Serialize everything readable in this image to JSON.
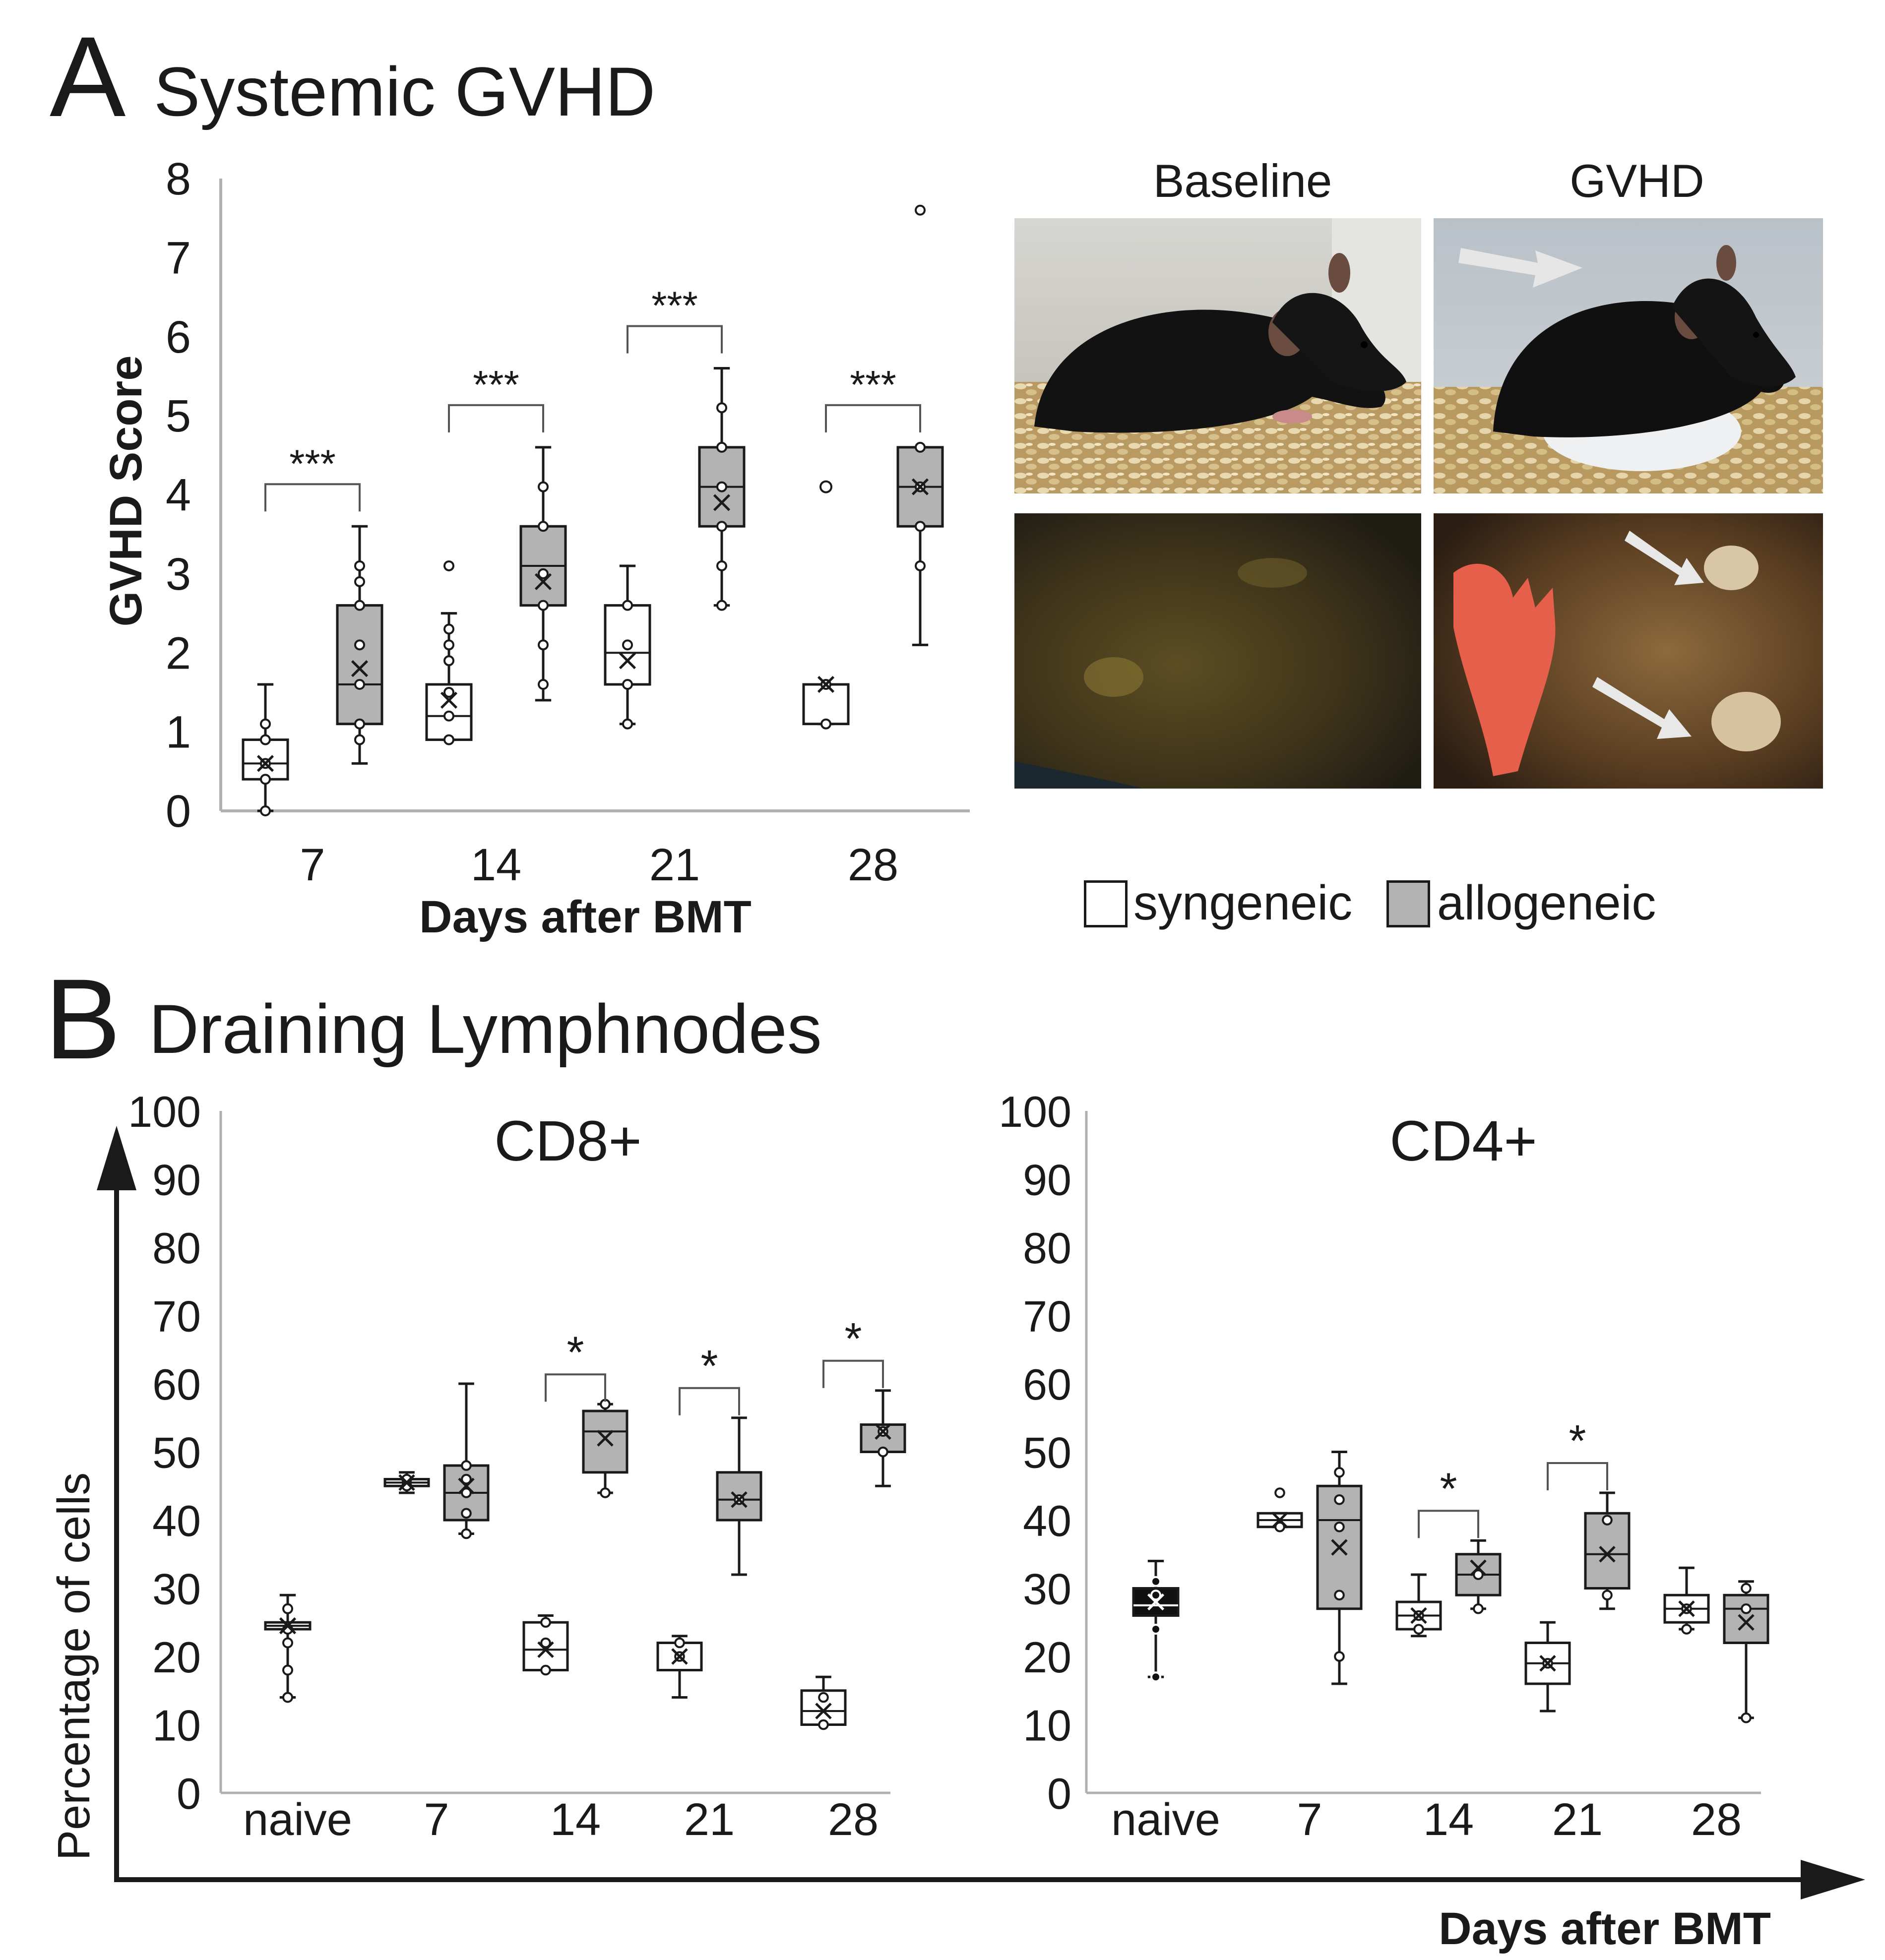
{
  "panel_a": {
    "letter": "A",
    "title": "Systemic GVHD",
    "photo_labels": {
      "baseline": "Baseline",
      "gvhd": "GVHD"
    }
  },
  "panel_b": {
    "letter": "B",
    "title": "Draining Lymphnodes",
    "shared_ylabel": "Percentage of cells",
    "shared_xlabel": "Days after BMT"
  },
  "legend": {
    "syngeneic": "syngeneic",
    "allogeneic": "allogeneic"
  },
  "colors": {
    "syngeneic_fill": "#ffffff",
    "allogeneic_fill": "#b3b3b3",
    "naive_cd4_fill": "#111111",
    "axis": "#b0b0b0",
    "ink": "#1a1a1a",
    "arrow": "#e8e8e8"
  },
  "chart_data": [
    {
      "id": "gvhd_score",
      "type": "box",
      "title": "",
      "xlabel": "Days after BMT",
      "ylabel": "GVHD Score",
      "ylim": [
        0,
        8
      ],
      "yticks": [
        "0",
        "1",
        "2",
        "3",
        "4",
        "5",
        "6",
        "7",
        "8"
      ],
      "categories": [
        "7",
        "14",
        "21",
        "28"
      ],
      "significance": [
        "***",
        "***",
        "***",
        "***"
      ],
      "series": [
        {
          "name": "syngeneic",
          "boxes": [
            {
              "min": 0,
              "q1": 0.4,
              "median": 0.6,
              "q3": 0.9,
              "max": 1.6,
              "mean": 0.6,
              "points": [
                0,
                0.4,
                0.6,
                0.9,
                1.1
              ]
            },
            {
              "min": 0.9,
              "q1": 0.9,
              "median": 1.2,
              "q3": 1.6,
              "max": 2.5,
              "mean": 1.4,
              "points": [
                0.9,
                1.2,
                1.5,
                1.9,
                2.1,
                2.3,
                3.1
              ]
            },
            {
              "min": 1.1,
              "q1": 1.6,
              "median": 2.0,
              "q3": 2.6,
              "max": 3.1,
              "mean": 1.9,
              "points": [
                1.1,
                1.6,
                2.1,
                2.6
              ]
            },
            {
              "min": 1.1,
              "q1": 1.1,
              "median": 1.6,
              "q3": 1.6,
              "max": 1.6,
              "mean": 1.6,
              "points": [
                1.1,
                1.6
              ]
            }
          ]
        },
        {
          "name": "allogeneic",
          "boxes": [
            {
              "min": 0.6,
              "q1": 1.1,
              "median": 1.6,
              "q3": 2.6,
              "max": 3.6,
              "mean": 1.8,
              "points": [
                0.9,
                1.1,
                1.6,
                2.1,
                2.6,
                2.9,
                3.1
              ]
            },
            {
              "min": 1.4,
              "q1": 2.6,
              "median": 3.1,
              "q3": 3.6,
              "max": 4.6,
              "mean": 2.9,
              "points": [
                1.6,
                2.1,
                2.6,
                3.0,
                3.6,
                4.1
              ]
            },
            {
              "min": 2.6,
              "q1": 3.6,
              "median": 4.1,
              "q3": 4.6,
              "max": 5.6,
              "mean": 3.9,
              "points": [
                2.6,
                3.1,
                3.6,
                4.1,
                4.6,
                5.1
              ]
            },
            {
              "min": 2.1,
              "q1": 3.6,
              "median": 4.1,
              "q3": 4.6,
              "max": 4.6,
              "mean": 4.1,
              "points": [
                3.1,
                3.6,
                4.1,
                4.6,
                7.6
              ]
            }
          ]
        }
      ],
      "outliers": {
        "syngeneic": [
          [
            3,
            4.1
          ]
        ]
      }
    },
    {
      "id": "cd8",
      "type": "box",
      "title": "CD8+",
      "xlabel": "",
      "ylabel": "",
      "ylim": [
        0,
        100
      ],
      "yticks": [
        "0",
        "10",
        "20",
        "30",
        "40",
        "50",
        "60",
        "70",
        "80",
        "90",
        "100"
      ],
      "categories": [
        "naive",
        "7",
        "14",
        "21",
        "28"
      ],
      "significance": [
        "",
        "",
        "*",
        "*",
        "*"
      ],
      "naive": {
        "min": 14,
        "q1": 24,
        "median": 24.5,
        "q3": 25,
        "max": 29,
        "mean": 24.5,
        "points": [
          14,
          18,
          22,
          24,
          27
        ]
      },
      "series": [
        {
          "name": "syngeneic",
          "boxes": [
            null,
            {
              "min": 44,
              "q1": 45,
              "median": 45.5,
              "q3": 46,
              "max": 47,
              "mean": 45.5,
              "points": [
                45,
                46
              ]
            },
            {
              "min": 18,
              "q1": 18,
              "median": 21,
              "q3": 25,
              "max": 26,
              "mean": 21,
              "points": [
                18,
                22,
                25
              ]
            },
            {
              "min": 14,
              "q1": 18,
              "median": 22,
              "q3": 22,
              "max": 23,
              "mean": 20,
              "points": [
                20,
                22
              ]
            },
            {
              "min": 10,
              "q1": 10,
              "median": 12,
              "q3": 15,
              "max": 17,
              "mean": 12,
              "points": [
                10,
                14
              ]
            }
          ]
        },
        {
          "name": "allogeneic",
          "boxes": [
            null,
            {
              "min": 38,
              "q1": 40,
              "median": 44,
              "q3": 48,
              "max": 60,
              "mean": 45,
              "points": [
                38,
                41,
                44,
                46,
                48
              ]
            },
            {
              "min": 44,
              "q1": 47,
              "median": 53,
              "q3": 56,
              "max": 57,
              "mean": 52,
              "points": [
                44,
                57
              ]
            },
            {
              "min": 32,
              "q1": 40,
              "median": 43,
              "q3": 47,
              "max": 55,
              "mean": 43,
              "points": [
                43
              ]
            },
            {
              "min": 45,
              "q1": 50,
              "median": 54,
              "q3": 54,
              "max": 59,
              "mean": 53,
              "points": [
                50,
                53
              ]
            }
          ]
        }
      ]
    },
    {
      "id": "cd4",
      "type": "box",
      "title": "CD4+",
      "xlabel": "",
      "ylabel": "",
      "ylim": [
        0,
        100
      ],
      "yticks": [
        "0",
        "10",
        "20",
        "30",
        "40",
        "50",
        "60",
        "70",
        "80",
        "90",
        "100"
      ],
      "categories": [
        "naive",
        "7",
        "14",
        "21",
        "28"
      ],
      "significance": [
        "",
        "",
        "*",
        "*",
        ""
      ],
      "naive": {
        "min": 17,
        "q1": 26,
        "median": 27.5,
        "q3": 30,
        "max": 34,
        "mean": 28,
        "points": [
          17,
          24,
          29,
          31
        ]
      },
      "series": [
        {
          "name": "syngeneic",
          "boxes": [
            null,
            {
              "min": 39,
              "q1": 39,
              "median": 40,
              "q3": 41,
              "max": 41,
              "mean": 40,
              "points": [
                39,
                44
              ]
            },
            {
              "min": 23,
              "q1": 24,
              "median": 26,
              "q3": 28,
              "max": 32,
              "mean": 26,
              "points": [
                24,
                26
              ]
            },
            {
              "min": 12,
              "q1": 16,
              "median": 19,
              "q3": 22,
              "max": 25,
              "mean": 19,
              "points": [
                19
              ]
            },
            {
              "min": 24,
              "q1": 25,
              "median": 27,
              "q3": 29,
              "max": 33,
              "mean": 27,
              "points": [
                24,
                27
              ]
            }
          ]
        },
        {
          "name": "allogeneic",
          "boxes": [
            null,
            {
              "min": 16,
              "q1": 27,
              "median": 40,
              "q3": 45,
              "max": 50,
              "mean": 36,
              "points": [
                20,
                29,
                39,
                43,
                47
              ]
            },
            {
              "min": 27,
              "q1": 29,
              "median": 32,
              "q3": 35,
              "max": 37,
              "mean": 33,
              "points": [
                27,
                32
              ]
            },
            {
              "min": 27,
              "q1": 30,
              "median": 35,
              "q3": 41,
              "max": 44,
              "mean": 35,
              "points": [
                29,
                40
              ]
            },
            {
              "min": 11,
              "q1": 22,
              "median": 27,
              "q3": 29,
              "max": 31,
              "mean": 25,
              "points": [
                11,
                27,
                30
              ]
            }
          ]
        }
      ]
    }
  ]
}
